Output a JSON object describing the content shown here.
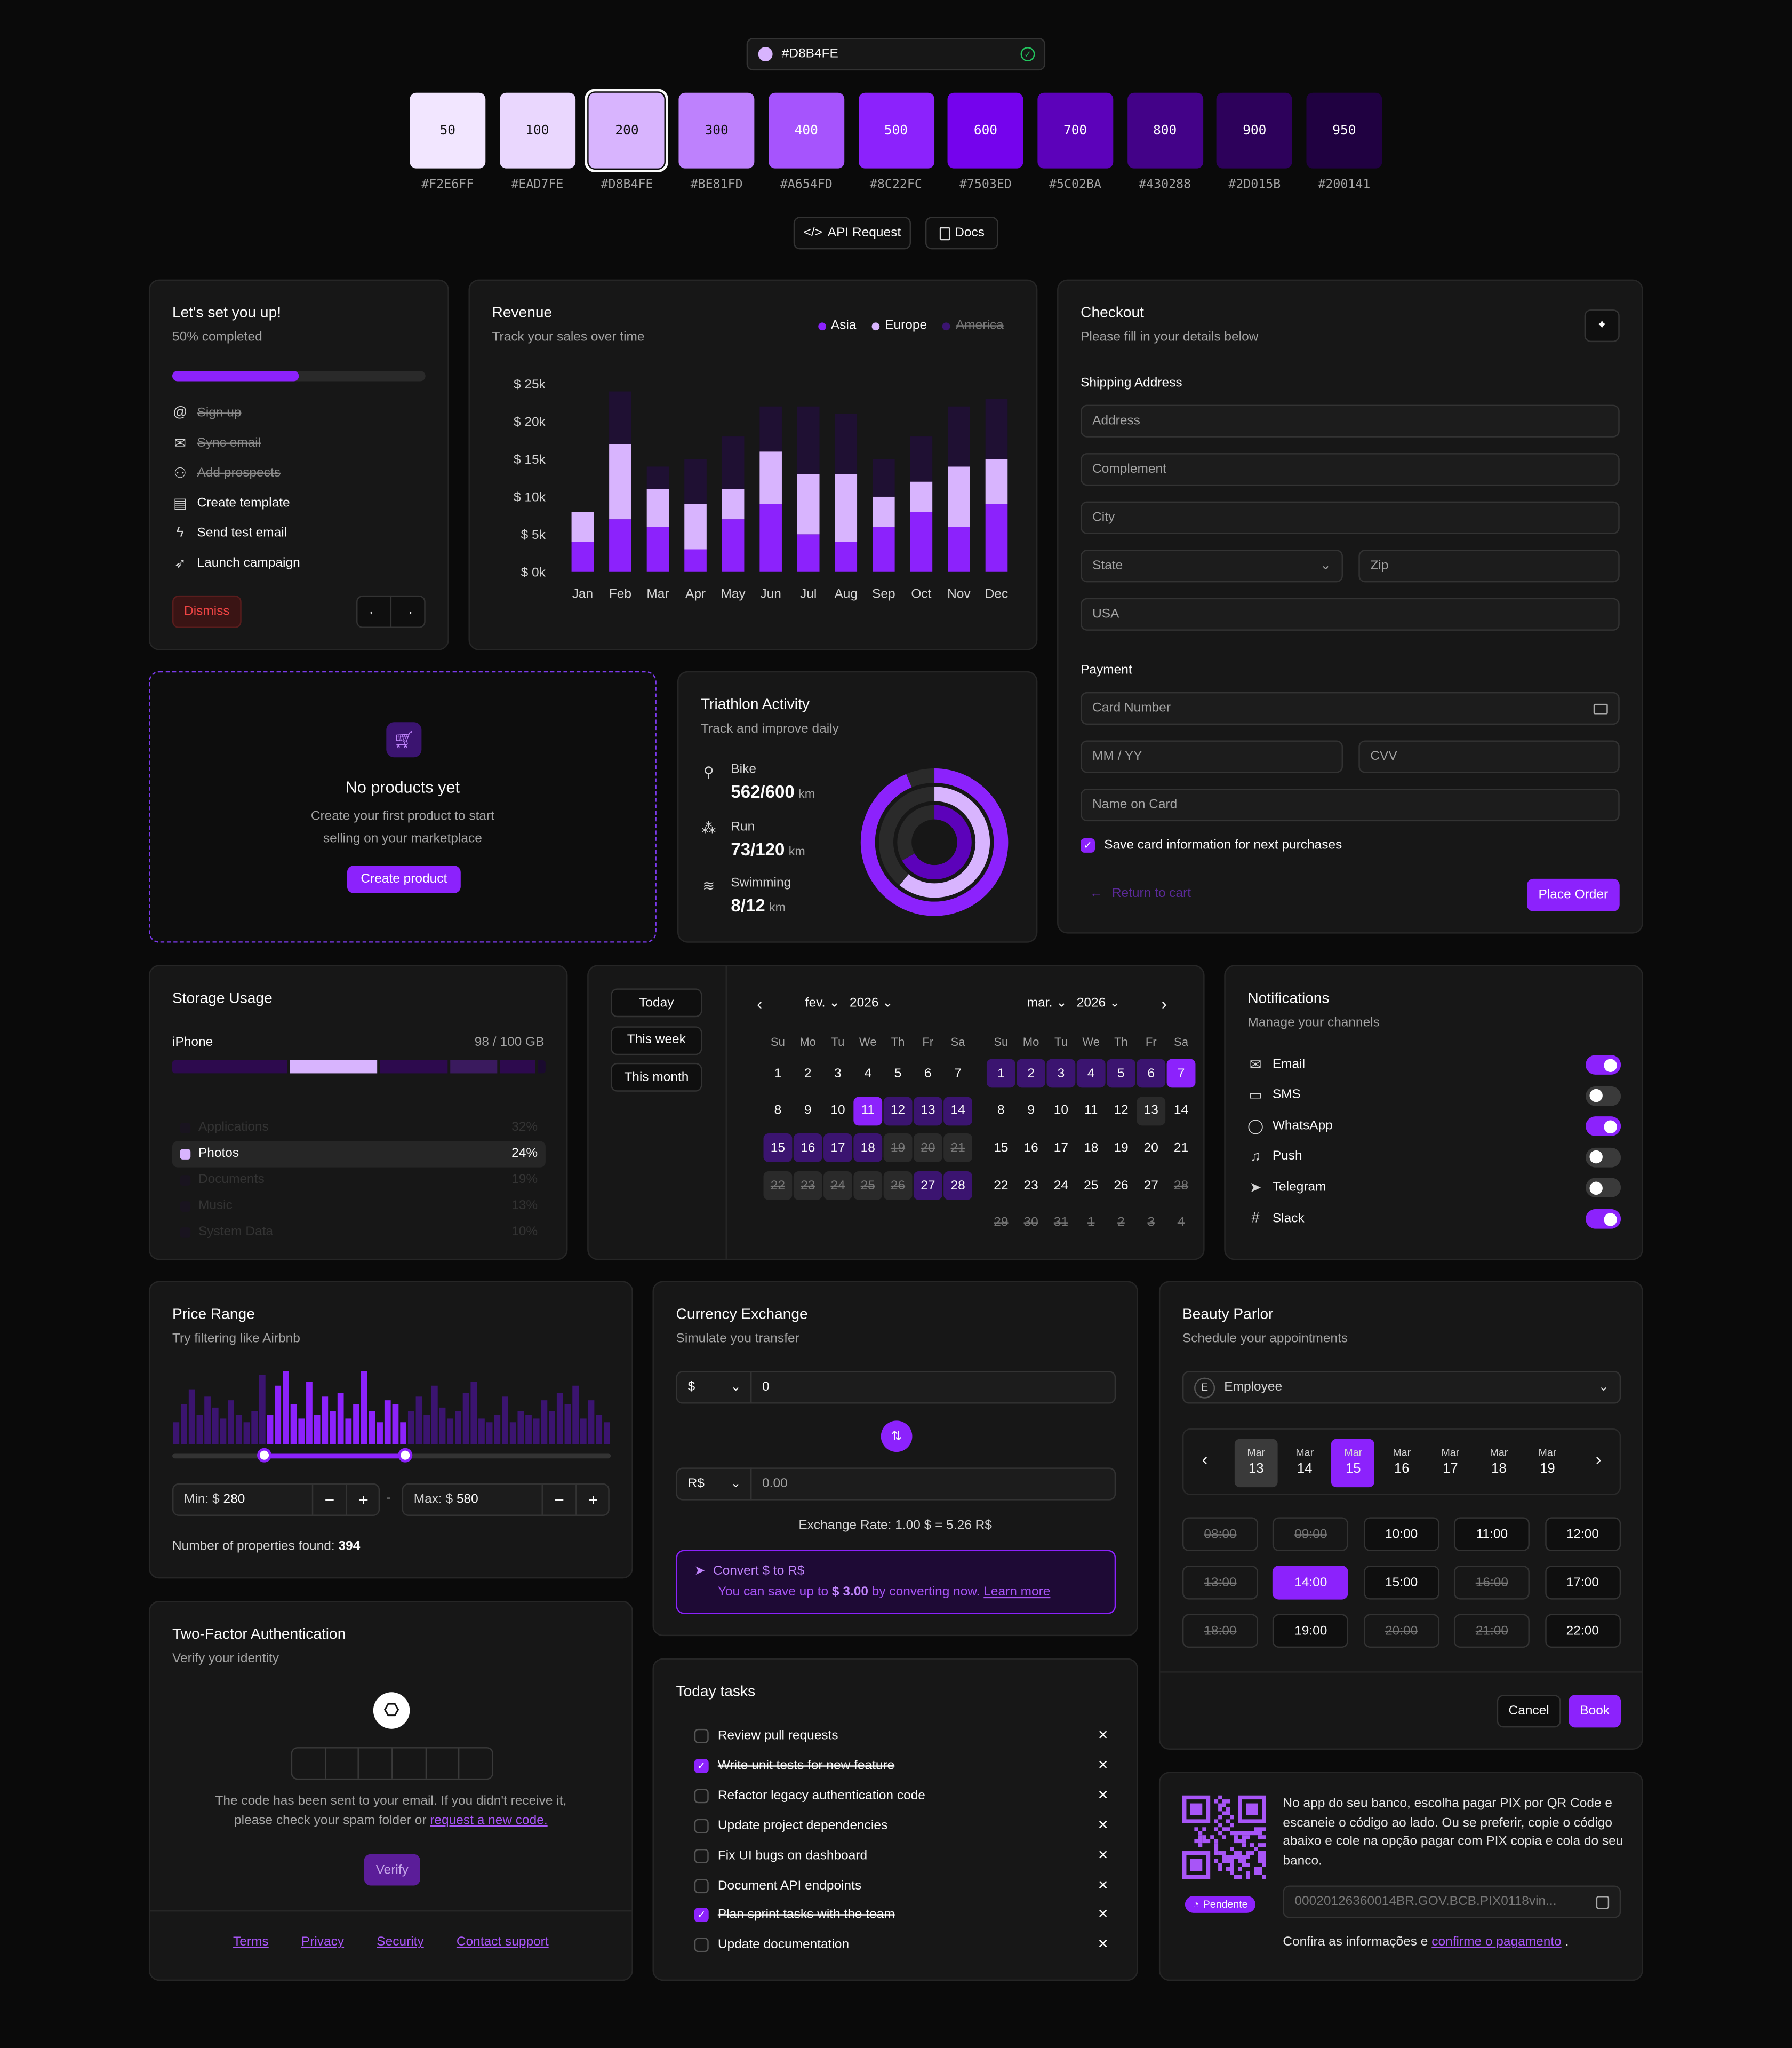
{
  "palette": {
    "hex_input": "#D8B4FE",
    "swatches": [
      {
        "shade": "50",
        "hex": "#F2E6FF",
        "color": "#F2E6FF"
      },
      {
        "shade": "100",
        "hex": "#EAD7FE",
        "color": "#EAD7FE"
      },
      {
        "shade": "200",
        "hex": "#D8B4FE",
        "color": "#D8B4FE"
      },
      {
        "shade": "300",
        "hex": "#BE81FD",
        "color": "#BE81FD"
      },
      {
        "shade": "400",
        "hex": "#A654FD",
        "color": "#A654FD"
      },
      {
        "shade": "500",
        "hex": "#8C22FC",
        "color": "#8C22FC"
      },
      {
        "shade": "600",
        "hex": "#7503ED",
        "color": "#7503ED"
      },
      {
        "shade": "700",
        "hex": "#5C02BA",
        "color": "#5C02BA"
      },
      {
        "shade": "800",
        "hex": "#430288",
        "color": "#430288"
      },
      {
        "shade": "900",
        "hex": "#2D015B",
        "color": "#2D015B"
      },
      {
        "shade": "950",
        "hex": "#200141",
        "color": "#200141"
      }
    ],
    "api_label": "API Request",
    "docs_label": "Docs"
  },
  "setup": {
    "title": "Let's set you up!",
    "progress_text": "50% completed",
    "progress": 0.5,
    "steps": [
      {
        "label": "Sign up",
        "done": true,
        "icon": "at-icon"
      },
      {
        "label": "Sync email",
        "done": true,
        "icon": "mail-icon"
      },
      {
        "label": "Add prospects",
        "done": true,
        "icon": "users-icon"
      },
      {
        "label": "Create template",
        "done": false,
        "icon": "file-icon"
      },
      {
        "label": "Send test email",
        "done": false,
        "icon": "zap-icon"
      },
      {
        "label": "Launch campaign",
        "done": false,
        "icon": "rocket-icon"
      }
    ],
    "dismiss": "Dismiss"
  },
  "revenue": {
    "title": "Revenue",
    "subtitle": "Track your sales over time",
    "legend": [
      {
        "name": "Asia",
        "color": "#8c22fc",
        "hidden": false
      },
      {
        "name": "Europe",
        "color": "#d8b4fe",
        "hidden": false
      },
      {
        "name": "America",
        "color": "#3b1470",
        "hidden": true
      }
    ]
  },
  "chart_data": {
    "type": "bar",
    "stacked": true,
    "categories": [
      "Jan",
      "Feb",
      "Mar",
      "Apr",
      "May",
      "Jun",
      "Jul",
      "Aug",
      "Sep",
      "Oct",
      "Nov",
      "Dec"
    ],
    "series": [
      {
        "name": "Asia",
        "values": [
          4,
          7,
          6,
          3,
          7,
          9,
          5,
          4,
          6,
          8,
          6,
          9
        ]
      },
      {
        "name": "Europe",
        "values": [
          4,
          10,
          5,
          6,
          4,
          7,
          8,
          9,
          4,
          4,
          8,
          6
        ]
      },
      {
        "name": "America",
        "values": [
          0,
          7,
          3,
          6,
          7,
          6,
          9,
          8,
          5,
          6,
          8,
          8
        ]
      }
    ],
    "yticks": [
      "$ 25k",
      "$ 20k",
      "$ 15k",
      "$ 10k",
      "$ 5k",
      "$ 0k"
    ],
    "ylim": [
      0,
      25
    ]
  },
  "checkout": {
    "title": "Checkout",
    "subtitle": "Please fill in your details below",
    "shipping": "Shipping Address",
    "address": "Address",
    "complement": "Complement",
    "city": "City",
    "state": "State",
    "zip": "Zip",
    "country": "USA",
    "payment": "Payment",
    "card": "Card Number",
    "mmyy": "MM / YY",
    "cvv": "CVV",
    "name": "Name on Card",
    "save": "Save card information for next purchases",
    "return": "Return to cart",
    "place": "Place Order"
  },
  "empty": {
    "title": "No products yet",
    "line1": "Create your first product to start",
    "line2": "selling on your marketplace",
    "cta": "Create product"
  },
  "triathlon": {
    "title": "Triathlon Activity",
    "subtitle": "Track and improve daily",
    "items": [
      {
        "label": "Bike",
        "value": "562/600",
        "unit": "km",
        "icon": "bike-icon",
        "progress": 0.937
      },
      {
        "label": "Run",
        "value": "73/120",
        "unit": "km",
        "icon": "footprints-icon",
        "progress": 0.608
      },
      {
        "label": "Swimming",
        "value": "8/12",
        "unit": "km",
        "icon": "waves-icon",
        "progress": 0.667
      }
    ]
  },
  "storage": {
    "title": "Storage Usage",
    "device": "iPhone",
    "usage": "98 / 100 GB",
    "items": [
      {
        "label": "Applications",
        "pct": "32%",
        "color": "#2d015b",
        "active": false
      },
      {
        "label": "Photos",
        "pct": "24%",
        "color": "#d8b4fe",
        "active": true
      },
      {
        "label": "Documents",
        "pct": "19%",
        "color": "#2d015b",
        "active": false
      },
      {
        "label": "Music",
        "pct": "13%",
        "color": "#2d015b",
        "active": false
      },
      {
        "label": "System Data",
        "pct": "10%",
        "color": "#2d015b",
        "active": false
      }
    ]
  },
  "calendar": {
    "presets": [
      "Today",
      "This week",
      "This month"
    ],
    "left": {
      "month": "fev.",
      "year": "2026"
    },
    "right": {
      "month": "mar.",
      "year": "2026"
    },
    "weekdays": [
      "Su",
      "Mo",
      "Tu",
      "We",
      "Th",
      "Fr",
      "Sa"
    ],
    "left_days": [
      [
        "1",
        "2",
        "3",
        "4",
        "5",
        "6",
        "7"
      ],
      [
        "8",
        "9",
        "10",
        "11",
        "12",
        "13",
        "14"
      ],
      [
        "15",
        "16",
        "17",
        "18",
        "19",
        "20",
        "21"
      ],
      [
        "22",
        "23",
        "24",
        "25",
        "26",
        "27",
        "28"
      ]
    ],
    "right_days": [
      [
        "1",
        "2",
        "3",
        "4",
        "5",
        "6",
        "7"
      ],
      [
        "8",
        "9",
        "10",
        "11",
        "12",
        "13",
        "14"
      ],
      [
        "15",
        "16",
        "17",
        "18",
        "19",
        "20",
        "21"
      ],
      [
        "22",
        "23",
        "24",
        "25",
        "26",
        "27",
        "28"
      ],
      [
        "29",
        "30",
        "31",
        "1",
        "2",
        "3",
        "4"
      ]
    ]
  },
  "notifications": {
    "title": "Notifications",
    "subtitle": "Manage your channels",
    "channels": [
      {
        "label": "Email",
        "on": true,
        "icon": "mail-icon"
      },
      {
        "label": "SMS",
        "on": false,
        "icon": "message-square-icon"
      },
      {
        "label": "WhatsApp",
        "on": true,
        "icon": "message-circle-icon"
      },
      {
        "label": "Push",
        "on": false,
        "icon": "bell-icon"
      },
      {
        "label": "Telegram",
        "on": false,
        "icon": "send-icon"
      },
      {
        "label": "Slack",
        "on": true,
        "icon": "slack-icon"
      }
    ]
  },
  "price": {
    "title": "Price Range",
    "subtitle": "Try filtering like Airbnb",
    "min_label": "Min: $",
    "min": "280",
    "max_label": "Max: $",
    "max": "580",
    "found_label": "Number of properties found:",
    "found": "394",
    "range": [
      0.21,
      0.53
    ],
    "bars": [
      0.3,
      0.55,
      0.75,
      0.4,
      0.65,
      0.5,
      0.35,
      0.6,
      0.4,
      0.3,
      0.45,
      0.95,
      0.4,
      0.8,
      1,
      0.55,
      0.35,
      0.85,
      0.4,
      0.65,
      0.45,
      0.7,
      0.35,
      0.55,
      1,
      0.45,
      0.3,
      0.6,
      0.55,
      0.3,
      0.45,
      0.65,
      0.4,
      0.8,
      0.5,
      0.35,
      0.45,
      0.7,
      0.85,
      0.35,
      0.3,
      0.4,
      0.65,
      0.3,
      0.45,
      0.4,
      0.35,
      0.6,
      0.45,
      0.7,
      0.55,
      0.8,
      0.35,
      0.6,
      0.4,
      0.3
    ]
  },
  "currency": {
    "title": "Currency Exchange",
    "subtitle": "Simulate you transfer",
    "from_cur": "$",
    "from_val": "0",
    "to_cur": "R$",
    "to_val": "0.00",
    "rate": "Exchange Rate: 1.00 $ = 5.26 R$",
    "promo_title": "Convert $ to R$",
    "promo_pre": "You can save up to",
    "promo_amount": "$ 3.00",
    "promo_post": "by converting now.",
    "learn": "Learn more"
  },
  "beauty": {
    "title": "Beauty Parlor",
    "subtitle": "Schedule your appointments",
    "employee_badge": "E",
    "employee": "Employee",
    "dates": [
      {
        "m": "Mar",
        "d": "13",
        "state": "muted"
      },
      {
        "m": "Mar",
        "d": "14",
        "state": ""
      },
      {
        "m": "Mar",
        "d": "15",
        "state": "sel"
      },
      {
        "m": "Mar",
        "d": "16",
        "state": ""
      },
      {
        "m": "Mar",
        "d": "17",
        "state": ""
      },
      {
        "m": "Mar",
        "d": "18",
        "state": ""
      },
      {
        "m": "Mar",
        "d": "19",
        "state": ""
      }
    ],
    "slots": [
      {
        "t": "08:00",
        "s": "dis"
      },
      {
        "t": "09:00",
        "s": "dis"
      },
      {
        "t": "10:00",
        "s": ""
      },
      {
        "t": "11:00",
        "s": ""
      },
      {
        "t": "12:00",
        "s": ""
      },
      {
        "t": "13:00",
        "s": "dis"
      },
      {
        "t": "14:00",
        "s": "sel"
      },
      {
        "t": "15:00",
        "s": ""
      },
      {
        "t": "16:00",
        "s": "dis"
      },
      {
        "t": "17:00",
        "s": ""
      },
      {
        "t": "18:00",
        "s": "dis"
      },
      {
        "t": "19:00",
        "s": ""
      },
      {
        "t": "20:00",
        "s": "dis"
      },
      {
        "t": "21:00",
        "s": "dis"
      },
      {
        "t": "22:00",
        "s": ""
      }
    ],
    "cancel": "Cancel",
    "book": "Book"
  },
  "tfa": {
    "title": "Two-Factor Authentication",
    "subtitle": "Verify your identity",
    "msg1": "The code has been sent to your email. If you didn't receive it,",
    "msg2": "please check your spam folder or",
    "resend": "request a new code.",
    "verify": "Verify",
    "footer": [
      "Terms",
      "Privacy",
      "Security",
      "Contact support"
    ]
  },
  "tasks": {
    "title": "Today tasks",
    "items": [
      {
        "label": "Review pull requests",
        "done": false
      },
      {
        "label": "Write unit tests for new feature",
        "done": true
      },
      {
        "label": "Refactor legacy authentication code",
        "done": false
      },
      {
        "label": "Update project dependencies",
        "done": false
      },
      {
        "label": "Fix UI bugs on dashboard",
        "done": false
      },
      {
        "label": "Document API endpoints",
        "done": false
      },
      {
        "label": "Plan sprint tasks with the team",
        "done": true
      },
      {
        "label": "Update documentation",
        "done": false
      }
    ]
  },
  "pix": {
    "text": "No app do seu banco, escolha pagar PIX por QR Code e escaneie o código ao lado. Ou se preferir, copie o código abaixo e cole na opção pagar com PIX copia e cola do seu banco.",
    "status": "Pendente",
    "code": "00020126360014BR.GOV.BCB.PIX0118vin...",
    "confirm_pre": "Confira as informações e",
    "confirm_link": "confirme o pagamento",
    "confirm_post": "."
  }
}
